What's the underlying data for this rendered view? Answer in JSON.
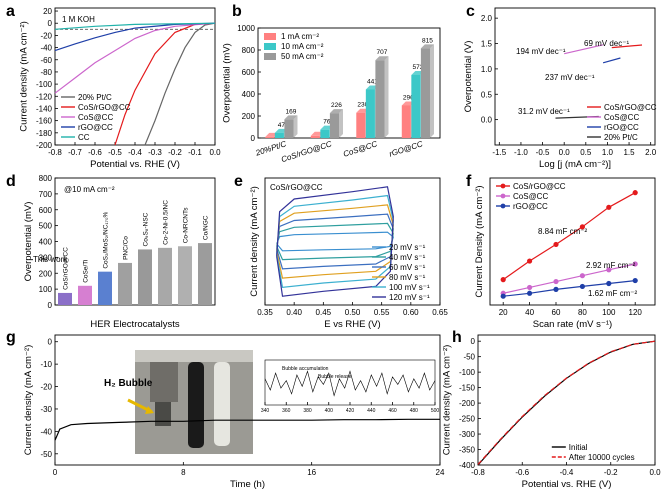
{
  "chart_data": [
    {
      "panel": "a",
      "type": "line",
      "xlabel": "Potential vs. RHE (V)",
      "ylabel": "Current density (mA cm⁻²)",
      "xlim": [
        -0.8,
        0.0
      ],
      "xticks": [
        -0.8,
        -0.7,
        -0.6,
        -0.5,
        -0.4,
        -0.3,
        -0.2,
        -0.1,
        {
          "value": 0,
          "label": "0.0"
        }
      ],
      "ylim": [
        -200,
        25
      ],
      "yticks": [
        20,
        0,
        -20,
        -40,
        -60,
        -80,
        -100,
        -120,
        -140,
        -160,
        -180,
        -200
      ],
      "hline": -10,
      "legend": "lower left",
      "legend_colored_text": true,
      "annotations": [
        {
          "text": "1 M KOH",
          "color": "#000000"
        }
      ],
      "series": [
        {
          "name": "20% Pt/C",
          "color": "#666666",
          "x": [
            0,
            -0.05,
            -0.1,
            -0.15,
            -0.2,
            -0.25,
            -0.3,
            -0.35
          ],
          "values": [
            0,
            -3,
            -15,
            -40,
            -75,
            -115,
            -160,
            -200
          ]
        },
        {
          "name": "CoS/rGO@CC",
          "color": "#e41a1c",
          "x": [
            0,
            -0.1,
            -0.2,
            -0.3,
            -0.4,
            -0.45,
            -0.5
          ],
          "values": [
            0,
            -2,
            -15,
            -50,
            -110,
            -150,
            -200
          ]
        },
        {
          "name": "CoS@CC",
          "color": "#cc66cc",
          "x": [
            0,
            -0.2,
            -0.3,
            -0.4,
            -0.5,
            -0.6,
            -0.7,
            -0.8
          ],
          "values": [
            0,
            -5,
            -12,
            -25,
            -45,
            -65,
            -90,
            -115
          ]
        },
        {
          "name": "rGO@CC",
          "color": "#1f3fa8",
          "x": [
            0,
            -0.2,
            -0.4,
            -0.5,
            -0.6,
            -0.7,
            -0.8
          ],
          "values": [
            0,
            -2,
            -8,
            -15,
            -24,
            -34,
            -45
          ]
        },
        {
          "name": "CC",
          "color": "#20b2aa",
          "x": [
            0,
            -0.4,
            -0.6,
            -0.8
          ],
          "values": [
            0,
            -2,
            -5,
            -10
          ]
        }
      ]
    },
    {
      "panel": "b",
      "type": "bar",
      "ylabel": "Overpotential (mV)",
      "categories": [
        "20%Pt/C",
        "CoS/rGO@CC",
        "CoS@CC",
        "rGO@CC"
      ],
      "category_colors": [
        "#000000",
        "#e41a1c",
        "#cc66cc",
        "#1f3fa8"
      ],
      "ylim": [
        0,
        1000
      ],
      "yticks": [
        0,
        200,
        400,
        600,
        800,
        1000
      ],
      "legend": "upper left",
      "series": [
        {
          "name": "1 mA cm⁻²",
          "color": "#ff8080",
          "values": [
            10,
            20,
            230,
            296
          ],
          "value_labels": [
            null,
            null,
            "230",
            "296"
          ]
        },
        {
          "name": "10 mA cm⁻²",
          "color": "#3cc8c8",
          "values": [
            47,
            76,
            441,
            573
          ],
          "value_labels": [
            "47",
            "76",
            "441",
            "573"
          ]
        },
        {
          "name": "50 mA cm⁻²",
          "color": "#9a9a9a",
          "values": [
            169,
            226,
            707,
            815
          ],
          "value_labels": [
            "169",
            "226",
            "707",
            "815"
          ]
        }
      ]
    },
    {
      "panel": "c",
      "type": "line",
      "xlabel": "Log [j (mA cm⁻²)]",
      "ylabel": "Overpotential (V)",
      "xlim": [
        -1.6,
        2.1
      ],
      "xticks": [
        -1.5,
        {
          "value": -1,
          "label": "-1.0"
        },
        -0.5,
        {
          "value": 0,
          "label": "0.0"
        },
        0.5,
        {
          "value": 1,
          "label": "1.0"
        },
        1.5,
        {
          "value": 2,
          "label": "2.0"
        }
      ],
      "ylim": [
        -0.5,
        2.2
      ],
      "yticks": [
        {
          "value": 0,
          "label": "0.0"
        },
        0.5,
        {
          "value": 1,
          "label": "1.0"
        },
        1.5,
        {
          "value": 2,
          "label": "2.0"
        }
      ],
      "legend": "lower right",
      "legend_colored_text": true,
      "annotations": [
        {
          "text": "194 mV dec⁻¹",
          "color": "#cc66cc"
        },
        {
          "text": "69 mV dec⁻¹",
          "color": "#e41a1c"
        },
        {
          "text": "237 mV dec⁻¹",
          "color": "#1f3fa8"
        },
        {
          "text": "31.2 mV dec⁻¹",
          "color": "#333333"
        }
      ],
      "series": [
        {
          "name": "CoS/rGO@CC",
          "color": "#e41a1c",
          "x": [
            1.1,
            1.8
          ],
          "values": [
            1.42,
            1.47
          ]
        },
        {
          "name": "CoS@CC",
          "color": "#cc66cc",
          "x": [
            0,
            0.9
          ],
          "values": [
            1.3,
            1.475
          ]
        },
        {
          "name": "rGO@CC",
          "color": "#1f3fa8",
          "x": [
            0.9,
            1.3
          ],
          "values": [
            1.12,
            1.215
          ]
        },
        {
          "name": "20% Pt/C",
          "color": "#333333",
          "x": [
            -0.2,
            0.8
          ],
          "values": [
            0.03,
            0.061
          ]
        }
      ]
    },
    {
      "panel": "d",
      "type": "bar",
      "xlabel": "HER Electrocatalysts",
      "ylabel": "Overpotential (mV)",
      "categories": [
        "CoS/rGO@CC",
        "CoSe/Ti",
        "CoS₂/MoS₂/NC₁₇₀%",
        "PNC/Co",
        "Co₉S₈-NSC",
        "Co-2-Ni-0.5/NC",
        "Co-NRCNTs",
        "Co/NGC"
      ],
      "values": [
        76,
        121,
        210,
        265,
        350,
        360,
        370,
        390
      ],
      "colors": [
        "#8b6fc8",
        "#d67fd1",
        "#5a80d0",
        "#a0a0a0",
        "#999999",
        "#a8a8a8",
        "#b0b0b0",
        "#9c9c9c"
      ],
      "ylim": [
        0,
        800
      ],
      "yticks": [
        0,
        100,
        200,
        300,
        400,
        500,
        600,
        700,
        800
      ],
      "annotations": [
        {
          "text": "@10 mA cm⁻²",
          "color": "#000000"
        },
        {
          "text": "This work",
          "color": "#e41a1c"
        }
      ]
    },
    {
      "panel": "e",
      "type": "line",
      "xlabel": "E vs RHE (V)",
      "ylabel": "Current density (mA cm⁻²)",
      "xlim": [
        0.35,
        0.65
      ],
      "xticks": [
        0.35,
        {
          "value": 0.4,
          "label": "0.40"
        },
        0.45,
        {
          "value": 0.5,
          "label": "0.50"
        },
        0.55,
        {
          "value": 0.6,
          "label": "0.60"
        },
        0.65
      ],
      "ylim": [
        -1.3,
        1.3
      ],
      "legend": "lower right",
      "annotations": [
        {
          "text": "CoS/rGO@CC",
          "color": "#000000"
        }
      ],
      "x": [
        0.37,
        0.375,
        0.4,
        0.5,
        0.56,
        0.57,
        0.565,
        0.54,
        0.45,
        0.38,
        0.37
      ],
      "series": [
        {
          "name": "20 mV s⁻¹",
          "color": "#3a8fd0",
          "values": [
            -0.05,
            0.1,
            0.14,
            0.17,
            0.19,
            0.09,
            -0.1,
            -0.15,
            -0.17,
            -0.19,
            -0.05
          ]
        },
        {
          "name": "40 mV s⁻¹",
          "color": "#2f9f9f",
          "values": [
            -0.1,
            0.2,
            0.29,
            0.34,
            0.37,
            0.17,
            -0.2,
            -0.31,
            -0.34,
            -0.37,
            -0.1
          ]
        },
        {
          "name": "60 mV s⁻¹",
          "color": "#3c6fc0",
          "values": [
            -0.15,
            0.31,
            0.43,
            0.51,
            0.56,
            0.26,
            -0.31,
            -0.46,
            -0.51,
            -0.56,
            -0.15
          ]
        },
        {
          "name": "80 mV s⁻¹",
          "color": "#e0a020",
          "values": [
            -0.2,
            0.41,
            0.58,
            0.68,
            0.75,
            0.34,
            -0.41,
            -0.61,
            -0.68,
            -0.75,
            -0.2
          ]
        },
        {
          "name": "100 mV s⁻¹",
          "color": "#3cb0d0",
          "values": [
            -0.26,
            0.51,
            0.72,
            0.85,
            0.94,
            0.43,
            -0.51,
            -0.77,
            -0.85,
            -0.94,
            -0.26
          ]
        },
        {
          "name": "120 mV s⁻¹",
          "color": "#333399",
          "values": [
            -0.31,
            0.61,
            0.87,
            1.02,
            1.12,
            0.51,
            -0.61,
            -0.92,
            -1.02,
            -1.12,
            -0.31
          ]
        }
      ]
    },
    {
      "panel": "f",
      "type": "line",
      "markers": true,
      "xlabel": "Scan rate (mV s⁻¹)",
      "ylabel": "Current Density (mA cm⁻²)",
      "xlim": [
        10,
        135
      ],
      "xticks": [
        20,
        40,
        60,
        80,
        100,
        120
      ],
      "ylim": [
        0,
        1.3
      ],
      "legend": "upper left",
      "legend_colored_text": true,
      "annotations": [
        {
          "text": "8.84 mF cm⁻²",
          "color": "#e41a1c"
        },
        {
          "text": "2.92 mF cm⁻²",
          "color": "#cc66cc"
        },
        {
          "text": "1.62 mF cm⁻²",
          "color": "#1f3fa8"
        }
      ],
      "x": [
        20,
        40,
        60,
        80,
        100,
        120
      ],
      "series": [
        {
          "name": "CoS/rGO@CC",
          "color": "#e41a1c",
          "values": [
            0.26,
            0.45,
            0.62,
            0.8,
            1.0,
            1.15
          ]
        },
        {
          "name": "CoS@CC",
          "color": "#cc66cc",
          "values": [
            0.12,
            0.18,
            0.24,
            0.3,
            0.36,
            0.42
          ]
        },
        {
          "name": "rGO@CC",
          "color": "#1f3fa8",
          "values": [
            0.09,
            0.12,
            0.16,
            0.19,
            0.22,
            0.25
          ]
        }
      ]
    },
    {
      "panel": "g",
      "type": "line",
      "xlabel": "Time (h)",
      "ylabel": "Current density (mA cm⁻²)",
      "xlim": [
        0,
        24
      ],
      "xticks": [
        0,
        8,
        16,
        24
      ],
      "ylim": [
        -55,
        3
      ],
      "yticks": [
        0,
        -10,
        -20,
        -30,
        -40,
        -50
      ],
      "annotations": [
        {
          "text": "H₂ Bubble",
          "color": "#e41a1c",
          "bold": true
        }
      ],
      "x": [
        0,
        0.3,
        1,
        2,
        4,
        6,
        8,
        10,
        12,
        14,
        16,
        18,
        20,
        22,
        24
      ],
      "series": [
        {
          "color": "#000000",
          "values": [
            -44,
            -39,
            -37,
            -36.5,
            -36,
            -35.5,
            -35.5,
            -35,
            -35,
            -35,
            -35,
            -34.8,
            -34.8,
            -34.6,
            -34.6
          ]
        }
      ]
    },
    {
      "type": "line",
      "xlim": [
        340,
        500
      ],
      "xticks": [
        340,
        360,
        380,
        400,
        420,
        440,
        460,
        480,
        500
      ],
      "ylim": [
        -1.2,
        1.2
      ],
      "annotations": [
        {
          "text": "Bubble accumulation",
          "color": "#000000"
        },
        {
          "text": "Bubble release",
          "color": "#000000"
        }
      ],
      "color": "#000000",
      "x": [
        340,
        345,
        350,
        355,
        360,
        365,
        370,
        375,
        380,
        385,
        390,
        395,
        400,
        405,
        410,
        415,
        420,
        425,
        430,
        435,
        440,
        445,
        450,
        455,
        460,
        465,
        470,
        475,
        480,
        485,
        490,
        495,
        500
      ],
      "values": [
        0.2,
        -0.4,
        0.5,
        -0.3,
        0.1,
        -0.6,
        0.4,
        -0.2,
        0.6,
        -0.5,
        0.3,
        -0.1,
        0.5,
        -0.7,
        0.2,
        -0.3,
        0.6,
        -0.4,
        0.1,
        -0.5,
        0.4,
        -0.2,
        0.5,
        -0.6,
        0.3,
        -0.1,
        0.4,
        -0.5,
        0.2,
        -0.3,
        0.5,
        -0.4,
        0.1
      ]
    },
    {
      "panel": "h",
      "type": "line",
      "xlabel": "Potential vs. RHE (V)",
      "ylabel": "Current density (mA cm⁻²)",
      "xlim": [
        -0.8,
        0.0
      ],
      "xticks": [
        -0.8,
        -0.6,
        -0.4,
        -0.2,
        {
          "value": 0,
          "label": "0.0"
        }
      ],
      "ylim": [
        -400,
        20
      ],
      "yticks": [
        0,
        -50,
        -100,
        -150,
        -200,
        -250,
        -300,
        -350,
        -400
      ],
      "legend": "lower right",
      "x": [
        -0.8,
        -0.7,
        -0.6,
        -0.5,
        -0.4,
        -0.3,
        -0.2,
        -0.1,
        0
      ],
      "series": [
        {
          "name": "Initial",
          "color": "#000000",
          "values": [
            -400,
            -320,
            -245,
            -178,
            -120,
            -72,
            -35,
            -10,
            0
          ]
        },
        {
          "name": "After 10000 cycles",
          "color": "#e41a1c",
          "dash": true,
          "values": [
            -398,
            -318,
            -243,
            -176,
            -119,
            -71,
            -34,
            -10,
            0
          ]
        }
      ]
    }
  ]
}
